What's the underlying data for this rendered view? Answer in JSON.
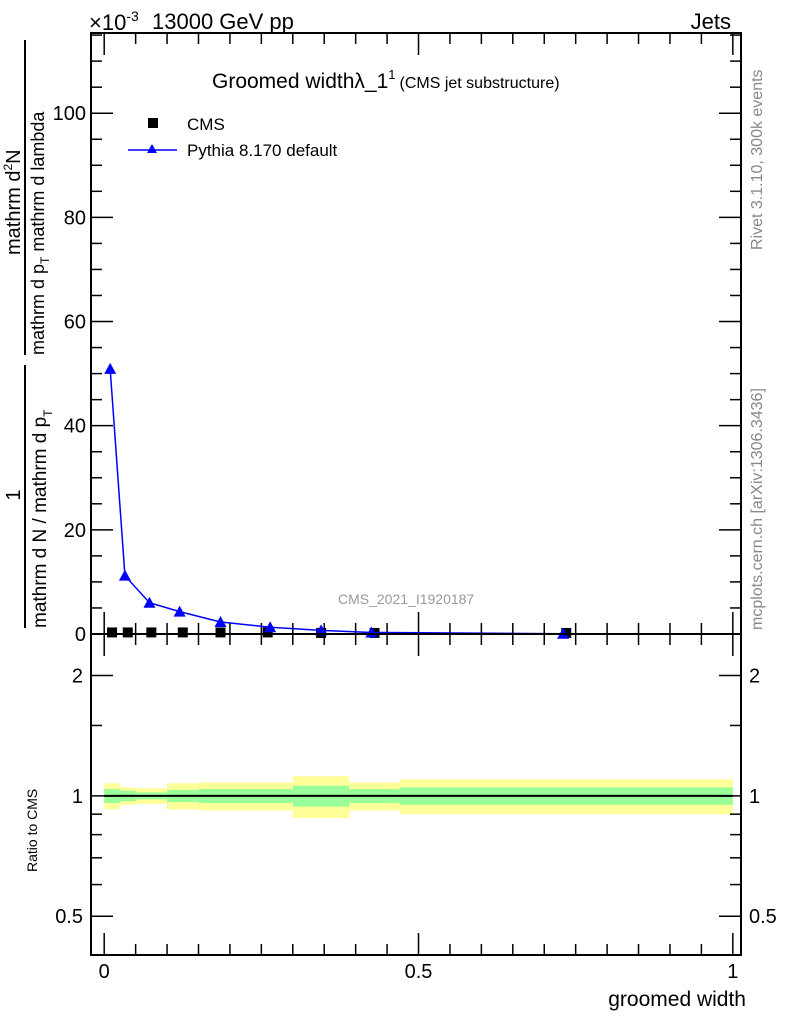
{
  "header": {
    "left": "13000 GeV pp",
    "right": "Jets",
    "exponent_label": "×10",
    "exponent_power": "-3"
  },
  "side_labels": {
    "rivet": "Rivet 3.1.10,  300k events",
    "mcplots": "mcplots.cern.ch [arXiv:1306.3436]"
  },
  "watermark": "CMS_2021_I1920187",
  "chart_data": [
    {
      "type": "line",
      "title": "Groomed widthλ_1",
      "title_sup": "1",
      "title_suffix": "(CMS jet substructure)",
      "xlabel": "groomed width",
      "ylabel_parts": {
        "num1": "1",
        "den1": "mathrm d N / mathrm d p",
        "den1_sub": "T",
        "num2": "mathrm d",
        "num2_sup": "2",
        "num2_tail": "N",
        "den2": "mathrm d p",
        "den2_sub": "T",
        "den2_tail": " mathrm d lambda"
      },
      "xlim": [
        -0.021,
        1.013
      ],
      "ylim": [
        0,
        115.4
      ],
      "y_scale_factor": "1e-3",
      "yticks": [
        0,
        20,
        40,
        60,
        80,
        100
      ],
      "xticks": [
        0,
        0.5,
        1
      ],
      "legend_position": "top-left",
      "bin_edges": [
        0,
        0.025,
        0.05,
        0.1,
        0.15,
        0.22,
        0.3,
        0.39,
        0.47,
        1.0
      ],
      "series": [
        {
          "name": "CMS",
          "marker": "square",
          "color": "#000000",
          "x": [
            0.0125,
            0.0375,
            0.075,
            0.125,
            0.185,
            0.26,
            0.345,
            0.43,
            0.735
          ],
          "y": [
            0.3,
            0.3,
            0.3,
            0.3,
            0.3,
            0.3,
            0.2,
            0.2,
            0.2
          ]
        },
        {
          "name": "Pythia 8.170 default",
          "marker": "triangle",
          "color": "#0000ff",
          "x": [
            0.0095,
            0.033,
            0.072,
            0.12,
            0.185,
            0.264,
            0.345,
            0.425,
            0.73
          ],
          "y": [
            50.9,
            11.2,
            6.0,
            4.3,
            2.3,
            1.3,
            0.7,
            0.3,
            0.05
          ],
          "yerr": [
            0.8,
            0.2,
            0.1,
            0.1,
            0.05,
            0.05,
            0.03,
            0.02,
            0.01
          ]
        }
      ]
    },
    {
      "type": "area",
      "ylabel": "Ratio to CMS",
      "yscale": "log",
      "ylim": [
        0.4,
        2.54
      ],
      "yticks": [
        0.5,
        1,
        2
      ],
      "ytick_labels": [
        "0.5",
        "1",
        "2"
      ],
      "xticks": [
        0,
        0.5,
        1
      ],
      "xtick_labels": [
        "0",
        "0.5",
        "1"
      ],
      "bin_edges": [
        0,
        0.025,
        0.05,
        0.1,
        0.15,
        0.22,
        0.3,
        0.39,
        0.47,
        1.0
      ],
      "bands": {
        "yellow_color": "#ffff99",
        "green_color": "#99ff99",
        "yellow_halfwidth": [
          0.075,
          0.05,
          0.045,
          0.075,
          0.08,
          0.08,
          0.12,
          0.08,
          0.1
        ],
        "green_halfwidth": [
          0.04,
          0.03,
          0.02,
          0.035,
          0.04,
          0.04,
          0.06,
          0.04,
          0.05
        ]
      },
      "reference": 1
    }
  ]
}
